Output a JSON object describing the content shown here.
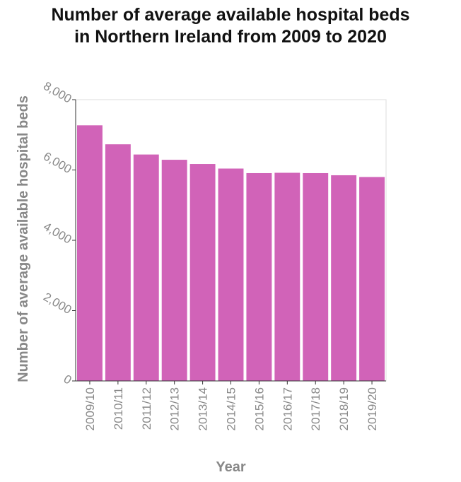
{
  "chart_data": {
    "type": "bar",
    "title": "Number of average available hospital beds in Northern Ireland from 2009 to 2020",
    "title_lines": [
      "Number of average available hospital beds",
      "in Northern Ireland from 2009 to 2020"
    ],
    "xlabel": "Year",
    "ylabel": "Number of average available hospital beds",
    "categories": [
      "2009/10",
      "2010/11",
      "2011/12",
      "2012/13",
      "2013/14",
      "2014/15",
      "2015/16",
      "2016/17",
      "2017/18",
      "2018/19",
      "2019/20"
    ],
    "values": [
      7270,
      6730,
      6440,
      6290,
      6170,
      6040,
      5910,
      5920,
      5910,
      5850,
      5800
    ],
    "ylim": [
      0,
      8000
    ],
    "yticks": [
      0,
      2000,
      4000,
      6000,
      8000
    ],
    "ytick_labels": [
      "0",
      "2,000",
      "4,000",
      "6,000",
      "8,000"
    ],
    "grid": false,
    "legend": "none",
    "bar_color": "#d163b8"
  }
}
